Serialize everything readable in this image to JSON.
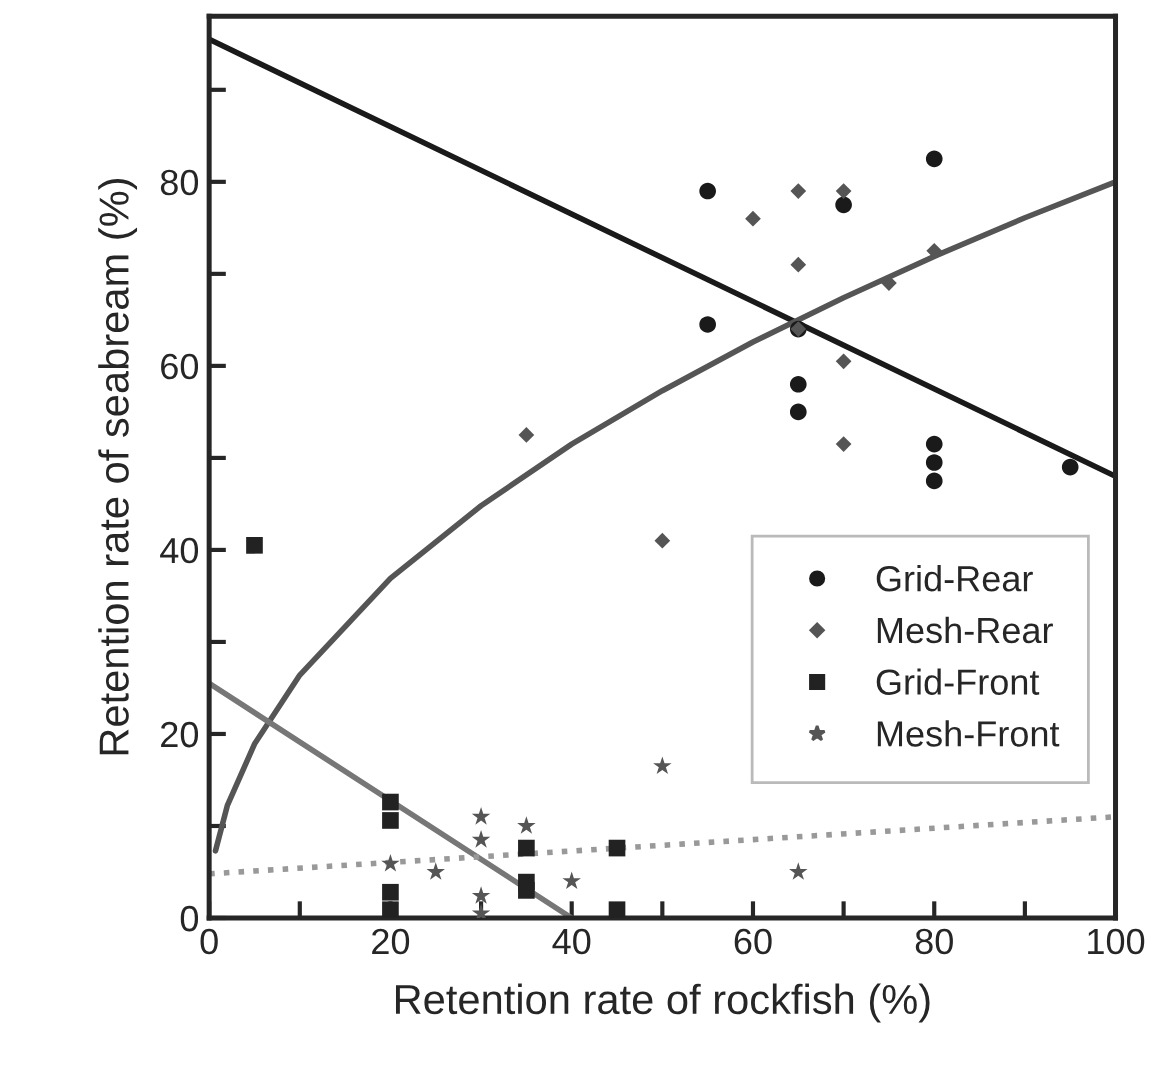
{
  "chart_data": {
    "type": "scatter",
    "xlabel": "Retention rate of rockfish (%)",
    "ylabel": "Retention rate of seabream (%)",
    "xlim": [
      0,
      100
    ],
    "ylim": [
      0,
      98
    ],
    "xticks": [
      0,
      {
        "value": 10,
        "label": null
      },
      20,
      {
        "value": 30,
        "label": null
      },
      40,
      {
        "value": 50,
        "label": null
      },
      60,
      {
        "value": 70,
        "label": null
      },
      80,
      {
        "value": 90,
        "label": null
      },
      100
    ],
    "yticks": [
      0,
      {
        "value": 10,
        "label": null
      },
      20,
      {
        "value": 30,
        "label": null
      },
      40,
      {
        "value": 50,
        "label": null
      },
      60,
      {
        "value": 70,
        "label": null
      },
      80,
      {
        "value": 90,
        "label": null
      }
    ],
    "grid": false,
    "legend": "bottom right",
    "series": [
      {
        "name": "Grid-Rear",
        "marker": "circle",
        "color": "#1a1a1a",
        "x": [
          55,
          55,
          65,
          65,
          65,
          70,
          80,
          80,
          80,
          80,
          95
        ],
        "values": [
          79,
          64.5,
          64,
          58,
          55,
          77.5,
          82.5,
          51.5,
          49.5,
          47.5,
          49
        ]
      },
      {
        "name": "Mesh-Rear",
        "marker": "diamond",
        "color": "#555555",
        "x": [
          35,
          50,
          60,
          65,
          65,
          65,
          70,
          70,
          70,
          75,
          80
        ],
        "values": [
          52.5,
          41,
          76,
          79,
          71,
          64,
          79,
          60.5,
          51.5,
          69,
          72.5
        ]
      },
      {
        "name": "Grid-Front",
        "marker": "square",
        "color": "#222222",
        "x": [
          5,
          20,
          20,
          20,
          20,
          35,
          35,
          35,
          45,
          45
        ],
        "values": [
          40.5,
          12.6,
          10.6,
          2.8,
          0.9,
          7.6,
          3.9,
          3,
          7.6,
          0.9
        ]
      },
      {
        "name": "Mesh-Front",
        "marker": "star",
        "color": "#555555",
        "x": [
          20,
          25,
          30,
          30,
          30,
          30,
          35,
          40,
          50,
          65
        ],
        "values": [
          5.9,
          5,
          11,
          8.5,
          2.4,
          0.5,
          10,
          4,
          16.5,
          5
        ]
      },
      {
        "type": "line",
        "color": "#1a1a1a",
        "line_style": "solid",
        "x": [
          0,
          100
        ],
        "values": [
          95.5,
          48
        ]
      },
      {
        "type": "line",
        "color": "#555555",
        "line_style": "solid",
        "x": [
          0.7,
          2,
          5,
          10,
          20,
          30,
          40,
          50,
          60,
          70,
          80,
          90,
          100
        ],
        "values": [
          7.3,
          12.2,
          18.9,
          26.4,
          36.9,
          44.8,
          51.5,
          57.3,
          62.6,
          67.4,
          71.9,
          76.1,
          80
        ]
      },
      {
        "type": "line",
        "color": "#777777",
        "line_style": "solid",
        "x": [
          0,
          40
        ],
        "values": [
          25.5,
          0
        ]
      },
      {
        "type": "line",
        "color": "#999999",
        "line_style": "dotted",
        "x": [
          0,
          100
        ],
        "values": [
          4.8,
          11
        ]
      }
    ]
  }
}
